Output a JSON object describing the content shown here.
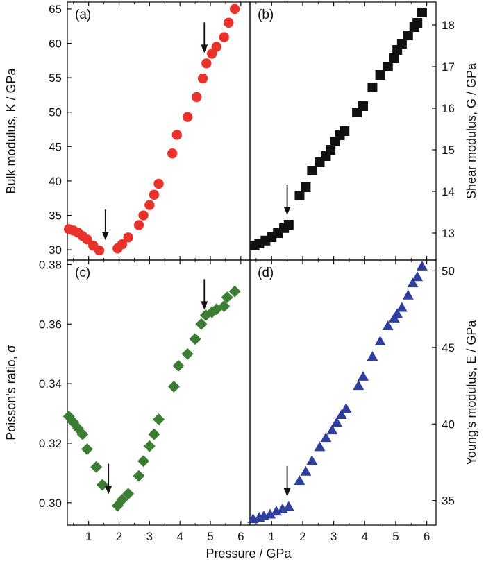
{
  "x_axis_label": "Pressure / GPa",
  "chart_data": [
    {
      "panel": "(a)",
      "type": "scatter",
      "ylabel": "Bulk modulus, K / GPa",
      "xlim": [
        0.3,
        6.3
      ],
      "ylim": [
        28.5,
        66
      ],
      "xticks": [
        1,
        2,
        3,
        4,
        5,
        6
      ],
      "yticks": [
        30,
        35,
        40,
        45,
        50,
        55,
        60,
        65
      ],
      "marker": "circle",
      "color": "#e8322b",
      "x": [
        0.35,
        0.5,
        0.65,
        0.8,
        0.95,
        1.15,
        1.35,
        1.95,
        2.1,
        2.3,
        2.65,
        2.8,
        3.0,
        3.15,
        3.3,
        3.75,
        3.9,
        4.25,
        4.55,
        4.75,
        4.87,
        5.05,
        5.2,
        5.45,
        5.6,
        5.8
      ],
      "y": [
        33.0,
        32.8,
        32.5,
        32.0,
        31.5,
        30.6,
        29.9,
        30.2,
        30.8,
        31.8,
        33.6,
        35.0,
        36.5,
        38.0,
        39.6,
        44.0,
        46.7,
        49.3,
        52.2,
        54.9,
        57.1,
        58.5,
        59.5,
        60.9,
        63.0,
        65.0
      ],
      "arrows": [
        {
          "x": 1.55,
          "y": 30.6
        },
        {
          "x": 4.8,
          "y": 57.8
        }
      ]
    },
    {
      "panel": "(b)",
      "type": "scatter",
      "ylabel": "Shear modulus, G / GPa",
      "xlim": [
        0.3,
        6.3
      ],
      "ylim": [
        12.35,
        18.55
      ],
      "xticks": [
        1,
        2,
        3,
        4,
        5,
        6
      ],
      "yticks": [
        13,
        14,
        15,
        16,
        17,
        18
      ],
      "marker": "square",
      "color": "#111111",
      "x": [
        0.45,
        0.6,
        0.8,
        1.0,
        1.2,
        1.4,
        1.55,
        1.9,
        2.1,
        2.3,
        2.55,
        2.75,
        2.9,
        3.05,
        3.2,
        3.35,
        3.75,
        3.95,
        4.25,
        4.5,
        4.75,
        4.95,
        5.05,
        5.2,
        5.4,
        5.6,
        5.7,
        5.85
      ],
      "y": [
        12.7,
        12.75,
        12.82,
        12.9,
        13.0,
        13.12,
        13.2,
        13.9,
        14.1,
        14.5,
        14.7,
        14.85,
        15.0,
        15.2,
        15.35,
        15.45,
        15.9,
        16.05,
        16.5,
        16.8,
        17.0,
        17.2,
        17.4,
        17.55,
        17.75,
        17.95,
        18.05,
        18.3
      ],
      "arrows": [
        {
          "x": 1.5,
          "y": 13.3
        }
      ]
    },
    {
      "panel": "(c)",
      "type": "scatter",
      "ylabel": "Poisson's ratio, σ",
      "xlim": [
        0.3,
        6.3
      ],
      "ylim": [
        0.2925,
        0.3815
      ],
      "xticks": [
        1,
        2,
        3,
        4,
        5,
        6
      ],
      "yticks": [
        0.3,
        0.32,
        0.34,
        0.36,
        0.38
      ],
      "ytick_labels": [
        "0.30",
        "0.32",
        "0.34",
        "0.36",
        "0.38"
      ],
      "marker": "diamond",
      "color": "#3c7d34",
      "x": [
        0.35,
        0.5,
        0.65,
        0.8,
        0.95,
        1.25,
        1.45,
        1.95,
        2.1,
        2.3,
        2.65,
        2.8,
        3.0,
        3.15,
        3.3,
        3.8,
        3.95,
        4.25,
        4.5,
        4.7,
        4.85,
        5.05,
        5.2,
        5.45,
        5.55,
        5.8
      ],
      "y": [
        0.329,
        0.327,
        0.325,
        0.323,
        0.318,
        0.312,
        0.306,
        0.299,
        0.301,
        0.303,
        0.309,
        0.314,
        0.319,
        0.323,
        0.328,
        0.339,
        0.346,
        0.35,
        0.355,
        0.36,
        0.363,
        0.364,
        0.365,
        0.366,
        0.369,
        0.371
      ],
      "arrows": [
        {
          "x": 1.65,
          "y": 0.301
        },
        {
          "x": 4.8,
          "y": 0.363
        }
      ]
    },
    {
      "panel": "(d)",
      "type": "scatter",
      "ylabel": "Young's modulus, E / GPa",
      "xlim": [
        0.3,
        6.3
      ],
      "ylim": [
        33.4,
        50.7
      ],
      "xticks": [
        1,
        2,
        3,
        4,
        5,
        6
      ],
      "yticks": [
        35,
        40,
        45,
        50
      ],
      "marker": "triangle",
      "color": "#2f3f9e",
      "x": [
        0.4,
        0.6,
        0.75,
        0.95,
        1.15,
        1.35,
        1.55,
        1.9,
        2.1,
        2.3,
        2.55,
        2.75,
        2.95,
        3.1,
        3.25,
        3.4,
        3.8,
        3.95,
        4.25,
        4.5,
        4.75,
        4.95,
        5.05,
        5.2,
        5.4,
        5.55,
        5.7,
        5.85
      ],
      "y": [
        33.8,
        33.9,
        34.0,
        34.1,
        34.3,
        34.45,
        34.6,
        36.3,
        36.9,
        37.6,
        38.5,
        39.1,
        39.6,
        40.1,
        40.6,
        41.0,
        42.5,
        43.1,
        44.4,
        45.4,
        46.4,
        46.9,
        47.2,
        47.6,
        48.4,
        49.2,
        49.6,
        50.3
      ],
      "arrows": [
        {
          "x": 1.5,
          "y": 34.9
        }
      ]
    }
  ]
}
